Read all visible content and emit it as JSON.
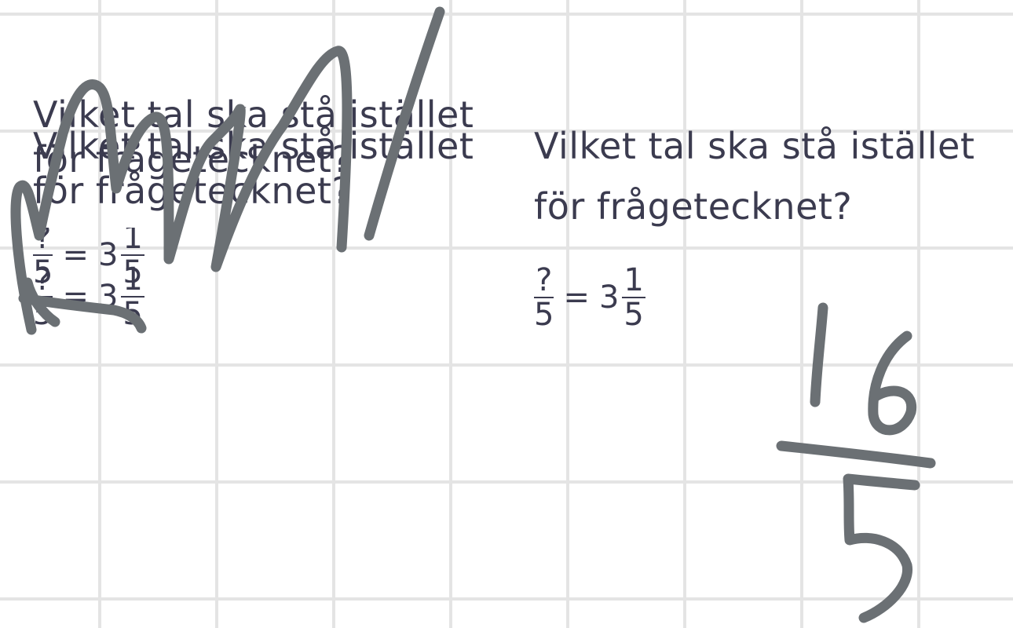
{
  "question": {
    "line1": "Vilket tal ska stå istället",
    "line2": "för frågetecknet?"
  },
  "equation": {
    "numerator": "?",
    "denominator": "5",
    "operator": "=",
    "whole": "3",
    "frac_numerator": "1",
    "frac_denominator": "5"
  },
  "ink": {
    "color": "#6b7074"
  }
}
